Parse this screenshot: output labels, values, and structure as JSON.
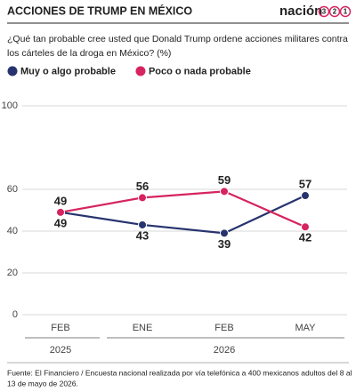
{
  "chart_data": {
    "type": "line",
    "title": "ACCIONES DE TRUMP EN MÉXICO",
    "logo": {
      "text": "nación",
      "digits": [
        "3",
        "2",
        "1"
      ]
    },
    "subtitle": [
      "¿Qué tan probable cree usted que Donald Trump ordene acciones militares contra",
      "los cárteles de la droga en México? (%)"
    ],
    "categories": [
      "FEB",
      "ENE",
      "FEB",
      "MAY"
    ],
    "year_groups": [
      "2025",
      "2026"
    ],
    "series": [
      {
        "name": "Muy o algo probable",
        "color": "#27336e",
        "values": [
          49,
          43,
          39,
          57
        ]
      },
      {
        "name": "Poco o nada probable",
        "color": "#d6245e",
        "values": [
          49,
          56,
          59,
          42
        ]
      }
    ],
    "ylim": [
      0,
      100
    ],
    "yticks": [
      0,
      20,
      40,
      60,
      100
    ],
    "grid": true,
    "source": [
      "Fuente: El Financiero / Encuesta nacional realizada por vía telefónica a 400 mexicanos adultos del 8 al",
      "13 de mayo de 2026."
    ]
  }
}
